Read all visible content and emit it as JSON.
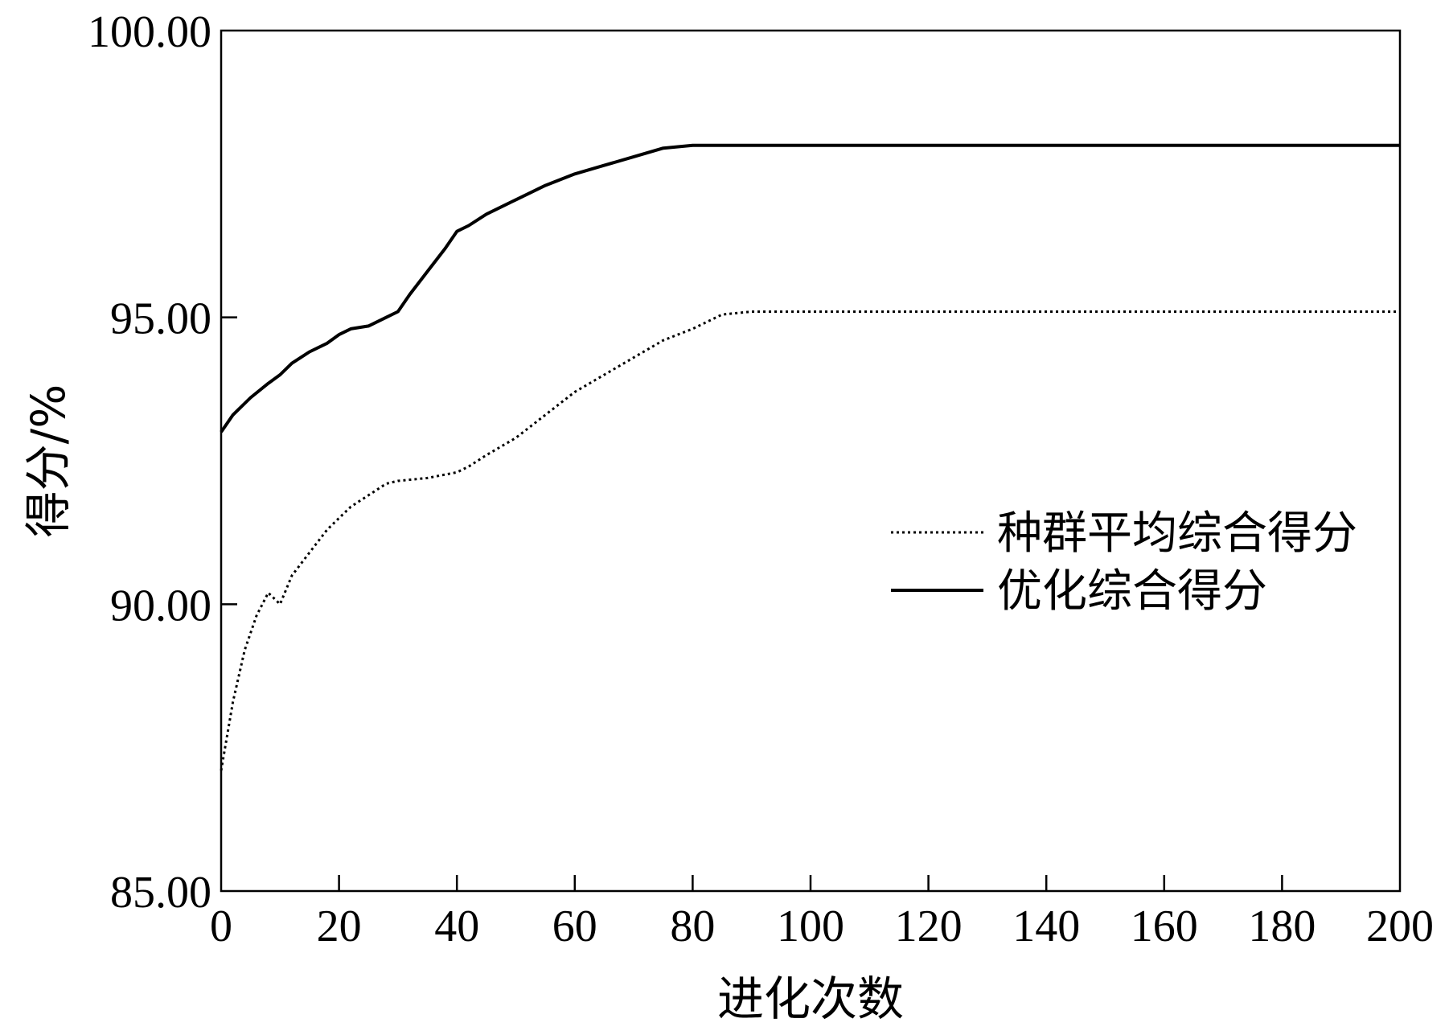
{
  "chart_data": {
    "type": "line",
    "title": "",
    "xlabel": "进化次数",
    "ylabel": "得分/%",
    "xlim": [
      0,
      200
    ],
    "ylim": [
      85,
      100
    ],
    "xticks": [
      0,
      20,
      40,
      60,
      80,
      100,
      120,
      140,
      160,
      180,
      200
    ],
    "yticks": [
      85,
      90,
      95,
      100
    ],
    "xtick_labels": [
      "0",
      "20",
      "40",
      "60",
      "80",
      "100",
      "120",
      "140",
      "160",
      "180",
      "200"
    ],
    "ytick_labels": [
      "85.00",
      "90.00",
      "95.00",
      "100.00"
    ],
    "grid": false,
    "legend_position": "right-middle",
    "series": [
      {
        "name": "种群平均综合得分",
        "style": "dotted",
        "color": "#000000",
        "x": [
          0,
          2,
          4,
          6,
          8,
          10,
          12,
          15,
          18,
          20,
          22,
          25,
          28,
          30,
          35,
          40,
          42,
          45,
          50,
          55,
          60,
          65,
          70,
          75,
          80,
          85,
          90,
          100,
          110,
          120,
          140,
          160,
          180,
          200
        ],
        "y": [
          87.1,
          88.3,
          89.2,
          89.8,
          90.2,
          90.0,
          90.5,
          90.9,
          91.3,
          91.5,
          91.7,
          91.9,
          92.1,
          92.15,
          92.2,
          92.3,
          92.4,
          92.6,
          92.9,
          93.3,
          93.7,
          94.0,
          94.3,
          94.6,
          94.8,
          95.05,
          95.1,
          95.1,
          95.1,
          95.1,
          95.1,
          95.1,
          95.1,
          95.1
        ]
      },
      {
        "name": "优化综合得分",
        "style": "solid",
        "color": "#000000",
        "x": [
          0,
          2,
          5,
          8,
          10,
          12,
          15,
          18,
          20,
          22,
          25,
          28,
          30,
          32,
          35,
          38,
          40,
          42,
          45,
          50,
          55,
          60,
          65,
          70,
          75,
          80,
          85,
          100,
          120,
          140,
          160,
          180,
          200
        ],
        "y": [
          93.0,
          93.3,
          93.6,
          93.85,
          94.0,
          94.2,
          94.4,
          94.55,
          94.7,
          94.8,
          94.85,
          95.0,
          95.1,
          95.4,
          95.8,
          96.2,
          96.5,
          96.6,
          96.8,
          97.05,
          97.3,
          97.5,
          97.65,
          97.8,
          97.95,
          98.0,
          98.0,
          98.0,
          98.0,
          98.0,
          98.0,
          98.0,
          98.0
        ]
      }
    ]
  }
}
